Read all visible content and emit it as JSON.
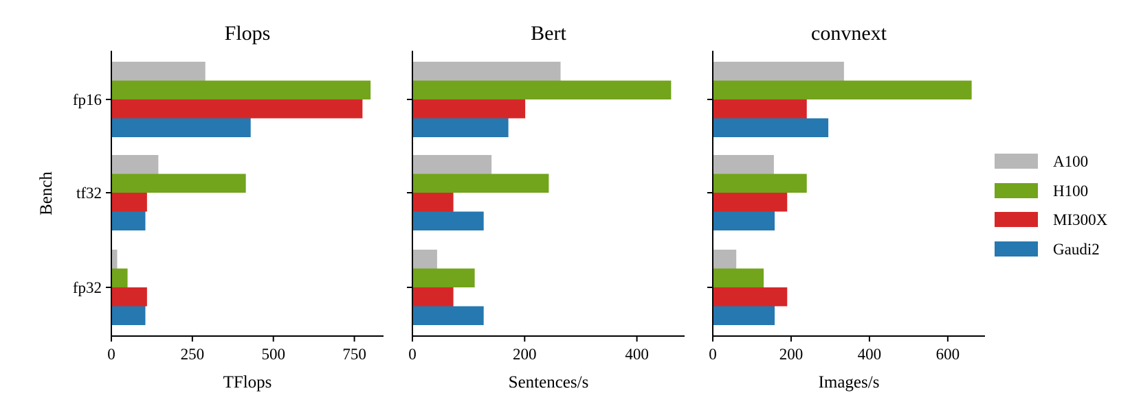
{
  "chart_data": [
    {
      "type": "bar",
      "orientation": "horizontal",
      "title": "Flops",
      "xlabel": "TFlops",
      "ylabel": "Bench",
      "categories": [
        "fp16",
        "tf32",
        "fp32"
      ],
      "xlim": [
        0,
        840
      ],
      "xticks": [
        "0",
        "250",
        "500",
        "750"
      ],
      "series": [
        {
          "name": "A100",
          "values": [
            290,
            145,
            18
          ]
        },
        {
          "name": "H100",
          "values": [
            800,
            415,
            50
          ]
        },
        {
          "name": "MI300X",
          "values": [
            775,
            110,
            110
          ]
        },
        {
          "name": "Gaudi2",
          "values": [
            430,
            105,
            105
          ]
        }
      ]
    },
    {
      "type": "bar",
      "orientation": "horizontal",
      "title": "Bert",
      "xlabel": "Sentences/s",
      "ylabel": "",
      "categories": [
        "fp16",
        "tf32",
        "fp32"
      ],
      "xlim": [
        0,
        485
      ],
      "xticks": [
        "0",
        "200",
        "400"
      ],
      "series": [
        {
          "name": "A100",
          "values": [
            264,
            141,
            44
          ]
        },
        {
          "name": "H100",
          "values": [
            461,
            243,
            111
          ]
        },
        {
          "name": "MI300X",
          "values": [
            201,
            73,
            73
          ]
        },
        {
          "name": "Gaudi2",
          "values": [
            171,
            127,
            127
          ]
        }
      ]
    },
    {
      "type": "bar",
      "orientation": "horizontal",
      "title": "convnext",
      "xlabel": "Images/s",
      "ylabel": "",
      "categories": [
        "fp16",
        "tf32",
        "fp32"
      ],
      "xlim": [
        0,
        695
      ],
      "xticks": [
        "0",
        "200",
        "400",
        "600"
      ],
      "series": [
        {
          "name": "A100",
          "values": [
            335,
            156,
            60
          ]
        },
        {
          "name": "H100",
          "values": [
            661,
            240,
            130
          ]
        },
        {
          "name": "MI300X",
          "values": [
            240,
            190,
            190
          ]
        },
        {
          "name": "Gaudi2",
          "values": [
            295,
            158,
            158
          ]
        }
      ]
    }
  ],
  "legend": {
    "placement": "right",
    "items": [
      {
        "label": "A100",
        "color": "#b8b8b8"
      },
      {
        "label": "H100",
        "color": "#72a41c"
      },
      {
        "label": "MI300X",
        "color": "#d62728"
      },
      {
        "label": "Gaudi2",
        "color": "#2678b0"
      }
    ]
  }
}
